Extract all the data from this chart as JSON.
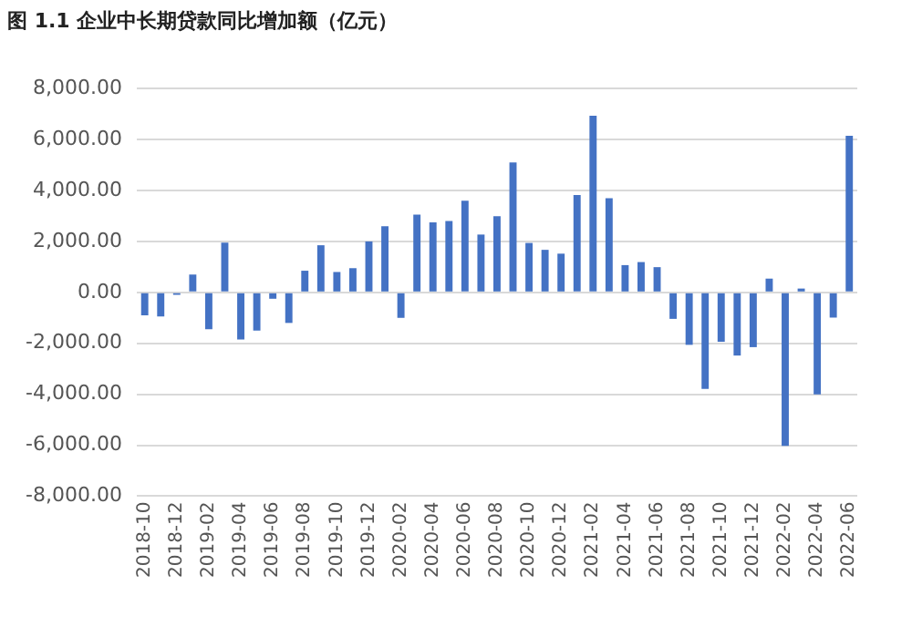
{
  "chart_data": {
    "type": "bar",
    "title": "图 1.1  企业中长期贷款同比增加额（亿元）",
    "categories": [
      "2018-10",
      null,
      "2018-12",
      null,
      "2019-02",
      null,
      "2019-04",
      null,
      "2019-06",
      null,
      "2019-08",
      null,
      "2019-10",
      null,
      "2019-12",
      null,
      "2020-02",
      null,
      "2020-04",
      null,
      "2020-06",
      null,
      "2020-08",
      null,
      "2020-10",
      null,
      "2020-12",
      null,
      "2021-02",
      null,
      "2021-04",
      null,
      "2021-06",
      null,
      "2021-08",
      null,
      "2021-10",
      null,
      "2021-12",
      null,
      "2022-02",
      null,
      "2022-04",
      null,
      "2022-06"
    ],
    "values": [
      -900,
      -950,
      -100,
      700,
      -1450,
      1950,
      -1850,
      -1500,
      -250,
      -1200,
      850,
      1850,
      800,
      950,
      2000,
      2600,
      -1000,
      3050,
      2750,
      2800,
      3600,
      2270,
      2990,
      5100,
      1940,
      1670,
      1520,
      3820,
      6930,
      3700,
      1070,
      1190,
      990,
      -1040,
      -2060,
      -3790,
      -1940,
      -2480,
      -2150,
      540,
      -6030,
      150,
      -4000,
      -990,
      6150
    ],
    "color": "#4472c4",
    "ylim": [
      -8000,
      8000
    ],
    "yticks": [
      {
        "value": -8000,
        "label": "-8,000.00"
      },
      {
        "value": -6000,
        "label": "-6,000.00"
      },
      {
        "value": -4000,
        "label": "-4,000.00"
      },
      {
        "value": -2000,
        "label": "-2,000.00"
      },
      {
        "value": 0,
        "label": "0.00"
      },
      {
        "value": 2000,
        "label": "2,000.00"
      },
      {
        "value": 4000,
        "label": "4,000.00"
      },
      {
        "value": 6000,
        "label": "6,000.00"
      },
      {
        "value": 8000,
        "label": "8,000.00"
      }
    ],
    "grid": "y"
  }
}
